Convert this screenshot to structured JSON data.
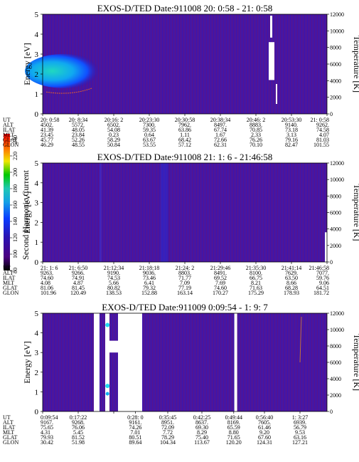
{
  "chart_data": {
    "type": "heatmap",
    "colorbar": {
      "label": "Second Harmonic Current",
      "ticks": [
        "80",
        "100",
        "120",
        "140",
        "160",
        "180",
        "200",
        "220",
        "240"
      ],
      "colors": [
        "#000000",
        "#4b0082",
        "#2a14b4",
        "#0a3cff",
        "#14a0e6",
        "#20c8b4",
        "#00c800",
        "#f0e600",
        "#ff6a00",
        "#ff0000"
      ]
    },
    "panels": [
      {
        "title": "EXOS-D/TED   Date:911008  20: 0:58 - 21: 0:58",
        "ylabel": "Energy [eV]",
        "y2label": "Temperature [K]",
        "yticks": [
          "0",
          "1",
          "2",
          "3",
          "4",
          "5"
        ],
        "y2ticks": [
          "0",
          "2000",
          "4000",
          "6000",
          "8000",
          "10000",
          "12000"
        ],
        "ephemeris": [
          {
            "name": "UT",
            "values": [
              "20: 0:58",
              "20: 8:34",
              "20:16: 2",
              "20:23:30",
              "20:30:58",
              "20:38:34",
              "20:46: 2",
              "20:53:30",
              "21: 0:58"
            ]
          },
          {
            "name": "ALT",
            "values": [
              "4502.",
              "5572.",
              "6502.",
              "7300.",
              "7962.",
              "8497.",
              "8883.",
              "9140.",
              "9262."
            ]
          },
          {
            "name": "ILAT",
            "values": [
              "41.39",
              "48.05",
              "54.08",
              "59.35",
              "63.86",
              "67.74",
              "70.85",
              "73.18",
              "74.58"
            ]
          },
          {
            "name": "MLT",
            "values": [
              "23.45",
              "23.84",
              "0.23",
              "0.64",
              "1.11",
              "1.67",
              "2.33",
              "3.13",
              "4.07"
            ]
          },
          {
            "name": "GLAT",
            "values": [
              "45.77",
              "52.26",
              "58.29",
              "63.67",
              "68.42",
              "72.66",
              "76.26",
              "79.16",
              "81.03"
            ]
          },
          {
            "name": "GLON",
            "values": [
              "46.29",
              "48.55",
              "50.84",
              "53.55",
              "57.12",
              "62.31",
              "70.10",
              "82.47",
              "101.55"
            ]
          }
        ]
      },
      {
        "title": "EXOS-D/TED   Date:911008  21: 1: 6 - 21:46:58",
        "ylabel": "Energy [eV]",
        "y2label": "Temperature [K]",
        "yticks": [
          "0",
          "1",
          "2",
          "3",
          "4",
          "5"
        ],
        "y2ticks": [
          "0",
          "2000",
          "4000",
          "6000",
          "8000",
          "10000",
          "12000"
        ],
        "ephemeris": [
          {
            "name": "UT",
            "values": [
              "21: 1: 6",
              "21: 6:50",
              "21:12:34",
              "21:18:18",
              "21:24: 2",
              "21:29:46",
              "21:35:30",
              "21:41:14",
              "21:46:58"
            ]
          },
          {
            "name": "ALT",
            "values": [
              "9263.",
              "9266.",
              "9190.",
              "9036.",
              "8803.",
              "8491.",
              "8100.",
              "7629.",
              "7077."
            ]
          },
          {
            "name": "ILAT",
            "values": [
              "74.60",
              "74.91",
              "74.53",
              "73.46",
              "71.77",
              "69.52",
              "66.75",
              "63.50",
              "59.76"
            ]
          },
          {
            "name": "MLT",
            "values": [
              "4.08",
              "4.87",
              "5.66",
              "6.41",
              "7.09",
              "7.69",
              "8.21",
              "8.66",
              "9.06"
            ]
          },
          {
            "name": "GLAT",
            "values": [
              "81.06",
              "81.45",
              "80.82",
              "79.32",
              "77.19",
              "74.60",
              "71.63",
              "68.28",
              "64.51"
            ]
          },
          {
            "name": "GLON",
            "values": [
              "101.96",
              "120.49",
              "138.53",
              "152.88",
              "163.14",
              "170.27",
              "175.29",
              "178.93",
              "181.72"
            ]
          }
        ]
      },
      {
        "title": "EXOS-D/TED   Date:911009  0:09:54 - 1: 9: 7",
        "ylabel": "Energy [eV]",
        "y2label": "Temperature [K]",
        "yticks": [
          "0",
          "1",
          "2",
          "3",
          "4",
          "5"
        ],
        "y2ticks": [
          "0",
          "2000",
          "4000",
          "6000",
          "8000",
          "10000",
          "12000"
        ],
        "ephemeris": [
          {
            "name": "UT",
            "values": [
              "0:09:54",
              "0:17:22",
              "",
              "0:28: 0",
              "0:35:45",
              "0:42:25",
              "0:49:44",
              "0:56:40",
              "1: 3:27"
            ]
          },
          {
            "name": "ALT",
            "values": [
              "9167.",
              "9268.",
              "",
              "9161.",
              "8951.",
              "8637.",
              "8169.",
              "7605.",
              "6939."
            ]
          },
          {
            "name": "ILAT",
            "values": [
              "75.65",
              "76.06",
              "",
              "74.26",
              "72.09",
              "69.30",
              "65.59",
              "61.46",
              "56.79"
            ]
          },
          {
            "name": "MLT",
            "values": [
              "4.31",
              "5.45",
              "",
              "7.01",
              "7.72",
              "8.29",
              "8.80",
              "9.20",
              "9.53"
            ]
          },
          {
            "name": "GLAT",
            "values": [
              "79.93",
              "81.52",
              "",
              "80.51",
              "78.29",
              "75.40",
              "71.65",
              "67.60",
              "63.16"
            ]
          },
          {
            "name": "GLON",
            "values": [
              "30.42",
              "51.98",
              "",
              "89.64",
              "104.34",
              "113.67",
              "120.20",
              "124.31",
              "127.21"
            ]
          }
        ]
      }
    ]
  }
}
